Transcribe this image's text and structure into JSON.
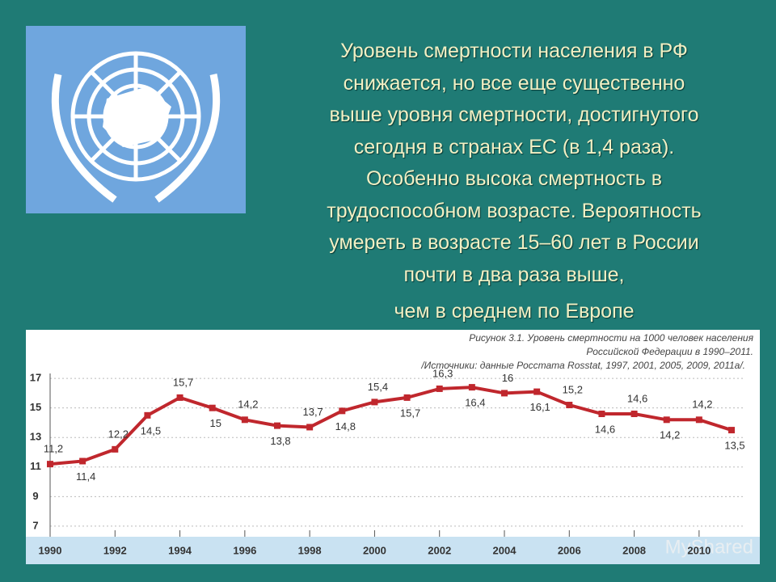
{
  "slide": {
    "heading_lines": [
      "Уровень смертности населения в РФ",
      "снижается, но все еще существенно",
      "выше уровня смертности, достигнутого",
      "сегодня в странах ЕС (в 1,4 раза).",
      "Особенно высока смертность  в",
      "трудоспособном возрасте. Вероятность",
      "умереть в возрасте 15–60 лет в России",
      "почти в два раза выше,",
      "чем в среднем по Европе"
    ],
    "watermark": "MyShared"
  },
  "chart_data": {
    "type": "line",
    "title": "Рисунок 3.1. Уровень смертности на 1000 человек населения",
    "subtitle": "Российской Федерации в 1990–2011.",
    "source": "/Источники: данные Росстата Rosstat, 1997, 2001, 2005, 2009, 2011а/.",
    "x": [
      1990,
      1991,
      1992,
      1993,
      1994,
      1995,
      1996,
      1997,
      1998,
      1999,
      2000,
      2001,
      2002,
      2003,
      2004,
      2005,
      2006,
      2007,
      2008,
      2009,
      2010,
      2011
    ],
    "values": [
      11.2,
      11.4,
      12.2,
      14.5,
      15.7,
      15,
      14.2,
      13.8,
      13.7,
      14.8,
      15.4,
      15.7,
      16.3,
      16.4,
      16,
      16.1,
      15.2,
      14.6,
      14.6,
      14.2,
      14.2,
      13.5
    ],
    "value_labels": [
      "11,2",
      "11,4",
      "12,2",
      "14,5",
      "15,7",
      "15",
      "14,2",
      "13,8",
      "13,7",
      "14,8",
      "15,4",
      "15,7",
      "16,3",
      "16,4",
      "16",
      "16,1",
      "15,2",
      "14,6",
      "14,6",
      "14,2",
      "14,2",
      "13,5"
    ],
    "color": "#c0272d",
    "xlim": [
      1990,
      2011
    ],
    "xticks": [
      1990,
      1992,
      1994,
      1996,
      1998,
      2000,
      2002,
      2004,
      2006,
      2008,
      2010
    ],
    "ylim": [
      6.5,
      17.5
    ],
    "yticks": [
      7,
      9,
      11,
      13,
      15,
      17
    ],
    "grid": true
  }
}
